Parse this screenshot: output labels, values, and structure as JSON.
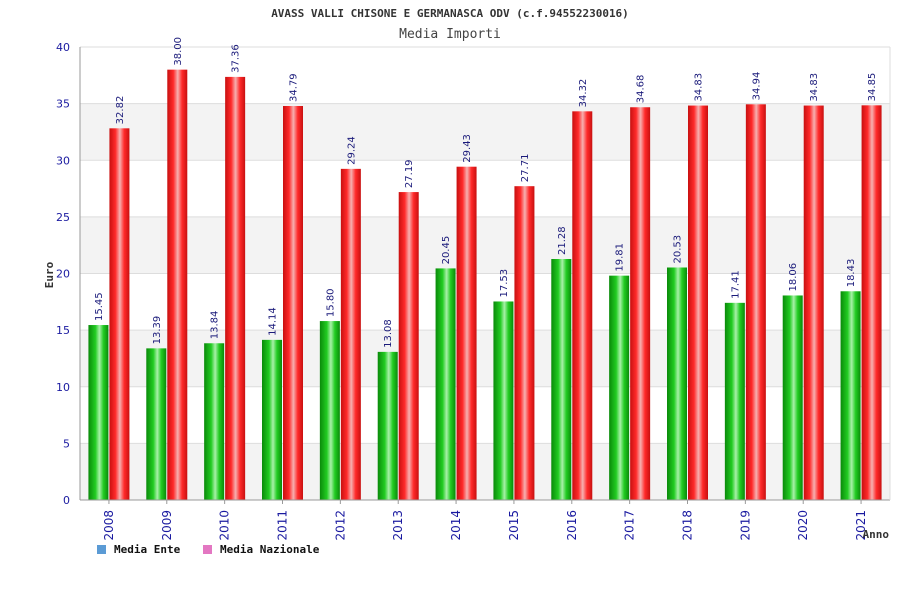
{
  "chart_data": {
    "type": "bar",
    "title": "AVASS VALLI CHISONE E GERMANASCA ODV (c.f.94552230016)",
    "subtitle": "Media Importi",
    "xlabel": "Anno",
    "ylabel": "Euro",
    "ylim": [
      0,
      40
    ],
    "yticks": [
      0,
      5,
      10,
      15,
      20,
      25,
      30,
      35,
      40
    ],
    "grid": true,
    "legend_position": "bottom-left",
    "categories": [
      "2008",
      "2009",
      "2010",
      "2011",
      "2012",
      "2013",
      "2014",
      "2015",
      "2016",
      "2017",
      "2018",
      "2019",
      "2020",
      "2021"
    ],
    "series": [
      {
        "name": "Media Ente",
        "color": "#22bb22",
        "legend_color": "#5b9bd5",
        "values": [
          15.45,
          13.39,
          13.84,
          14.14,
          15.8,
          13.08,
          20.45,
          17.53,
          21.28,
          19.81,
          20.53,
          17.41,
          18.06,
          18.43
        ],
        "labels": [
          "15.45",
          "13.39",
          "13.84",
          "14.14",
          "15.80",
          "13.08",
          "20.45",
          "17.53",
          "21.28",
          "19.81",
          "20.53",
          "17.41",
          "18.06",
          "18.43"
        ]
      },
      {
        "name": "Media Nazionale",
        "color": "#ee2222",
        "legend_color": "#e377c2",
        "values": [
          32.82,
          38.0,
          37.36,
          34.79,
          29.24,
          27.19,
          29.43,
          27.71,
          34.32,
          34.68,
          34.83,
          34.94,
          34.83,
          34.85
        ],
        "labels": [
          "32.82",
          "38.00",
          "37.36",
          "34.79",
          "29.24",
          "27.19",
          "29.43",
          "27.71",
          "34.32",
          "34.68",
          "34.83",
          "34.94",
          "34.83",
          "34.85"
        ]
      }
    ]
  }
}
